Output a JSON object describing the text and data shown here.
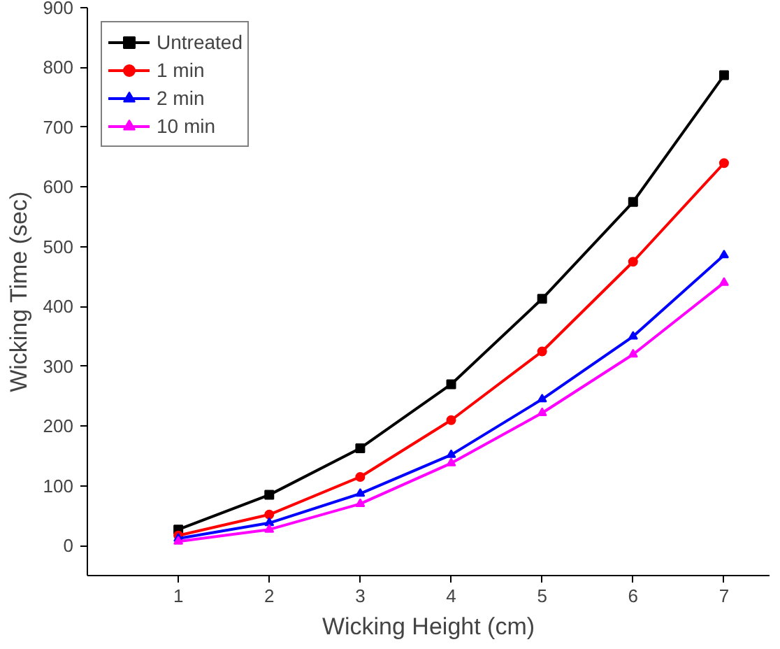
{
  "chart_data": {
    "type": "line",
    "xlabel": "Wicking Height (cm)",
    "ylabel": "Wicking Time (sec)",
    "x": [
      1,
      2,
      3,
      4,
      5,
      6,
      7
    ],
    "series": [
      {
        "name": "Untreated",
        "color": "#000000",
        "marker": "square",
        "values": [
          27,
          85,
          163,
          270,
          413,
          575,
          787
        ]
      },
      {
        "name": "1 min",
        "color": "#ff0000",
        "marker": "circle",
        "values": [
          17,
          52,
          115,
          210,
          325,
          475,
          640
        ]
      },
      {
        "name": "2 min",
        "color": "#0000ff",
        "marker": "triangle",
        "values": [
          12,
          38,
          87,
          152,
          245,
          350,
          486
        ]
      },
      {
        "name": "10 min",
        "color": "#ff00ff",
        "marker": "triangle",
        "values": [
          7,
          27,
          70,
          138,
          222,
          320,
          440
        ]
      }
    ],
    "xlim": [
      0,
      7.5
    ],
    "ylim": [
      -50,
      900
    ],
    "xticks": [
      1,
      2,
      3,
      4,
      5,
      6,
      7
    ],
    "yticks": [
      0,
      100,
      200,
      300,
      400,
      500,
      600,
      700,
      800,
      900
    ],
    "legend": "top left",
    "grid": false,
    "line_style": "solid"
  }
}
